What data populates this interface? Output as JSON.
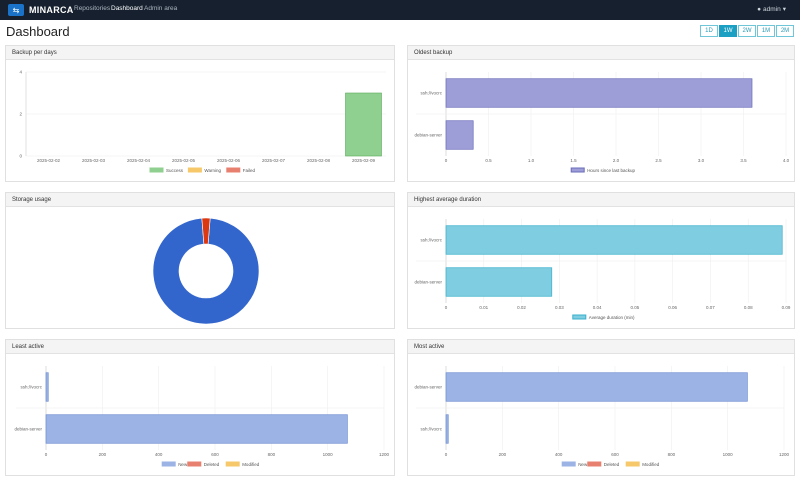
{
  "navbar": {
    "brand": "MINARCA",
    "links": [
      "Repositories",
      "Dashboard",
      "Admin area"
    ],
    "user": "admin"
  },
  "page": {
    "title": "Dashboard",
    "periods": [
      "1D",
      "1W",
      "2W",
      "1M",
      "2M"
    ],
    "active_period": "1W"
  },
  "cards": {
    "backup_per_days": "Backup per days",
    "oldest_backup": "Oldest backup",
    "storage_usage": "Storage usage",
    "highest_avg_duration": "Highest average duration",
    "least_active": "Least active",
    "most_active": "Most active"
  },
  "colors": {
    "success": "#8fcf8f",
    "warning": "#f6c86a",
    "failed": "#e8806f",
    "purple": "#9d9ed8",
    "cyan": "#7fcde0",
    "blue": "#3366cc",
    "red": "#dc3912",
    "new": "#9bb3e5"
  },
  "chart_data": [
    {
      "id": "backup-per-days",
      "type": "bar",
      "categories": [
        "2025-02-02",
        "2025-02-03",
        "2025-02-04",
        "2025-02-05",
        "2025-02-06",
        "2025-02-07",
        "2025-02-08",
        "2025-02-09"
      ],
      "series": [
        {
          "name": "Success",
          "values": [
            0,
            0,
            0,
            0,
            0,
            0,
            0,
            3
          ]
        },
        {
          "name": "Warning",
          "values": [
            0,
            0,
            0,
            0,
            0,
            0,
            0,
            0
          ]
        },
        {
          "name": "Failed",
          "values": [
            0,
            0,
            0,
            0,
            0,
            0,
            0,
            0
          ]
        }
      ],
      "yticks": [
        "0",
        "2",
        "4"
      ],
      "ylim": [
        0,
        4
      ],
      "legend": "bottom"
    },
    {
      "id": "oldest-backup",
      "type": "bar",
      "orientation": "horizontal",
      "categories": [
        "ssh://vocrc",
        "debian-server"
      ],
      "series": [
        {
          "name": "Hours since last backup",
          "values": [
            3.6,
            0.32
          ]
        }
      ],
      "xticks": [
        "0",
        "0.5",
        "1.0",
        "1.5",
        "2.0",
        "2.5",
        "3.0",
        "3.5",
        "4.0"
      ],
      "xlim": [
        0,
        4
      ],
      "legend": "bottom"
    },
    {
      "id": "storage-usage",
      "type": "pie",
      "donut": true,
      "values": [
        97.5,
        2.5
      ]
    },
    {
      "id": "highest-average-duration",
      "type": "bar",
      "orientation": "horizontal",
      "categories": [
        "ssh://vocrc",
        "debian-server"
      ],
      "series": [
        {
          "name": "Average duration (min)",
          "values": [
            0.089,
            0.028
          ]
        }
      ],
      "xticks": [
        "0",
        "0.01",
        "0.02",
        "0.03",
        "0.04",
        "0.05",
        "0.06",
        "0.07",
        "0.08",
        "0.09"
      ],
      "xlim": [
        0,
        0.09
      ],
      "legend": "bottom"
    },
    {
      "id": "least-active",
      "type": "bar",
      "orientation": "horizontal",
      "stacked": true,
      "categories": [
        "ssh://vocrc",
        "debian-server"
      ],
      "series": [
        {
          "name": "New",
          "values": [
            8,
            1070
          ]
        },
        {
          "name": "Deleted",
          "values": [
            0,
            0
          ]
        },
        {
          "name": "Modified",
          "values": [
            0,
            0
          ]
        }
      ],
      "xticks": [
        "0",
        "200",
        "400",
        "600",
        "800",
        "1000",
        "1200"
      ],
      "xlim": [
        0,
        1200
      ],
      "legend": "bottom"
    },
    {
      "id": "most-active",
      "type": "bar",
      "orientation": "horizontal",
      "stacked": true,
      "categories": [
        "debian-server",
        "ssh://vocrc"
      ],
      "series": [
        {
          "name": "New",
          "values": [
            1070,
            8
          ]
        },
        {
          "name": "Deleted",
          "values": [
            0,
            0
          ]
        },
        {
          "name": "Modified",
          "values": [
            0,
            0
          ]
        }
      ],
      "xticks": [
        "0",
        "200",
        "400",
        "600",
        "800",
        "1000",
        "1200"
      ],
      "xlim": [
        0,
        1200
      ],
      "legend": "bottom"
    }
  ]
}
